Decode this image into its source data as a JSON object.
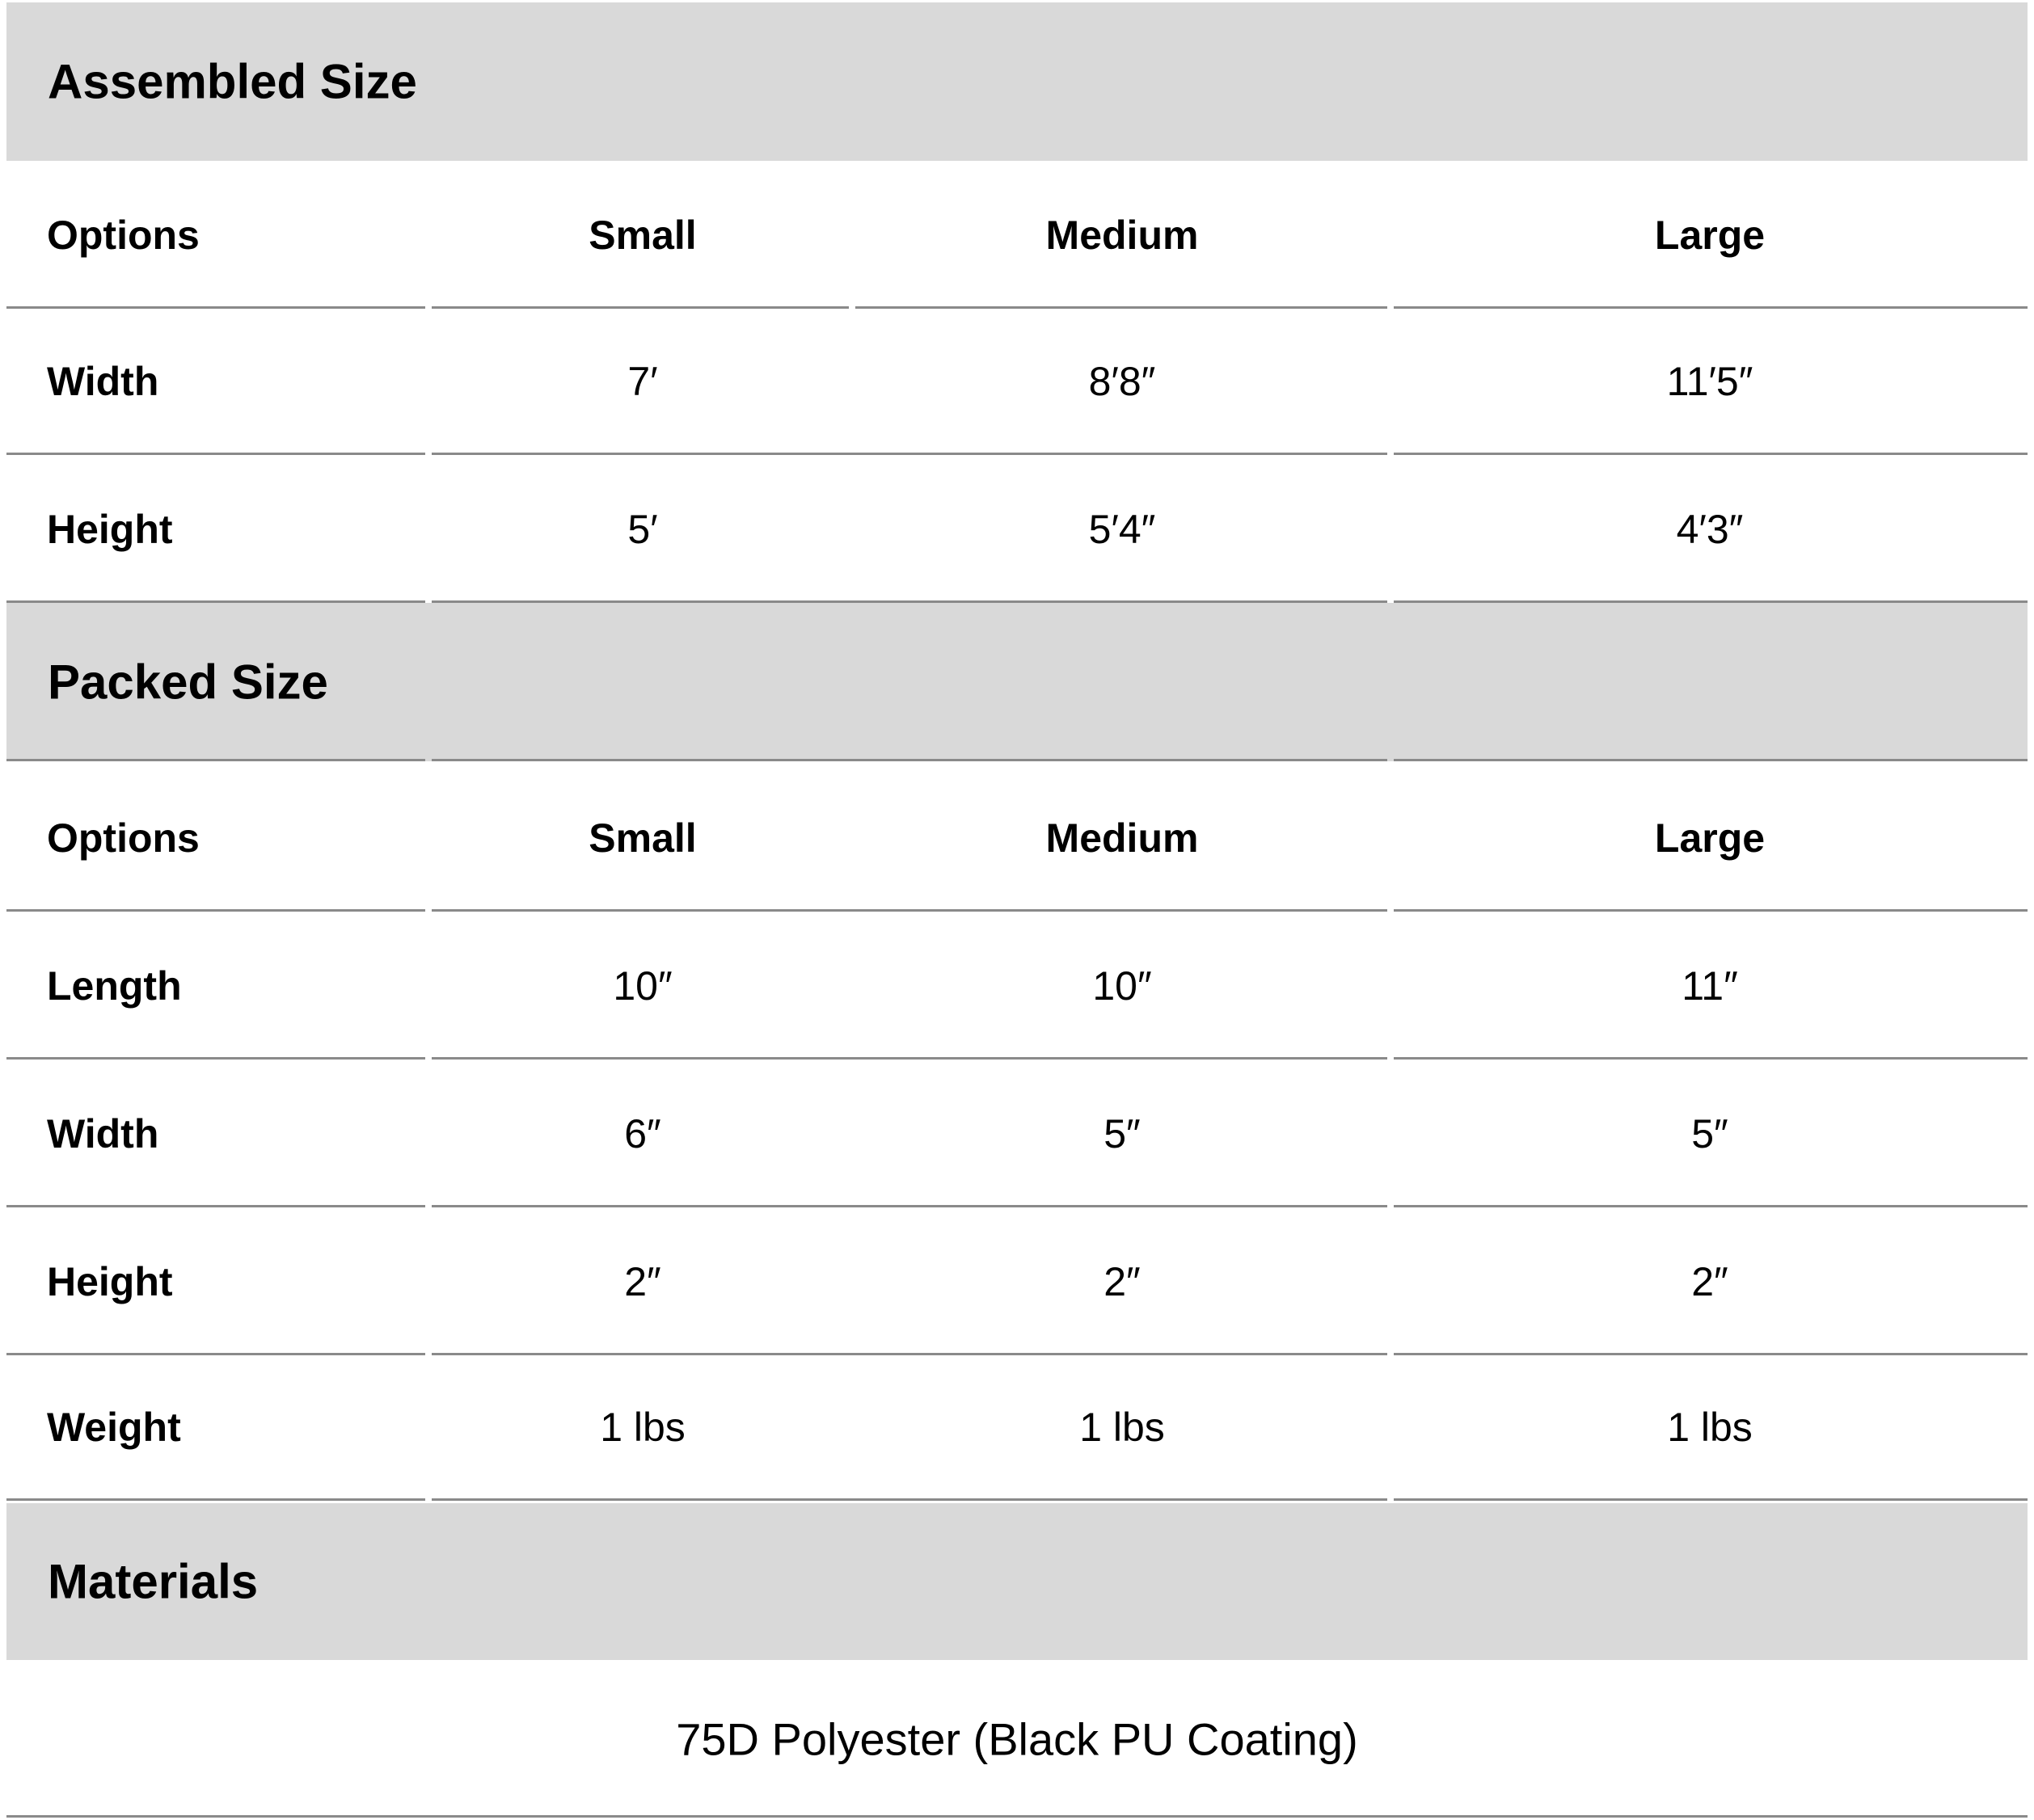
{
  "sections": [
    {
      "title": "Assembled Size",
      "header": {
        "label": "Options",
        "cols": [
          "Small",
          "Medium",
          "Large"
        ]
      },
      "rows": [
        {
          "label": "Width",
          "values": [
            "7′",
            "8′8″",
            "11′5″"
          ]
        },
        {
          "label": "Height",
          "values": [
            "5′",
            "5′4″",
            "4′3″"
          ]
        }
      ]
    },
    {
      "title": "Packed Size",
      "header": {
        "label": "Options",
        "cols": [
          "Small",
          "Medium",
          "Large"
        ]
      },
      "rows": [
        {
          "label": "Length",
          "values": [
            "10″",
            "10″",
            "11″"
          ]
        },
        {
          "label": "Width",
          "values": [
            "6″",
            "5″",
            "5″"
          ]
        },
        {
          "label": "Height",
          "values": [
            "2″",
            "2″",
            "2″"
          ]
        },
        {
          "label": "Weight",
          "values": [
            "1 lbs",
            "1 lbs",
            "1 lbs"
          ]
        }
      ]
    }
  ],
  "materials": {
    "title": "Materials",
    "value": "75D Polyester (Black PU Coating)"
  },
  "colors": {
    "band": "#d9d9d9",
    "rule": "#8a8a8a"
  }
}
